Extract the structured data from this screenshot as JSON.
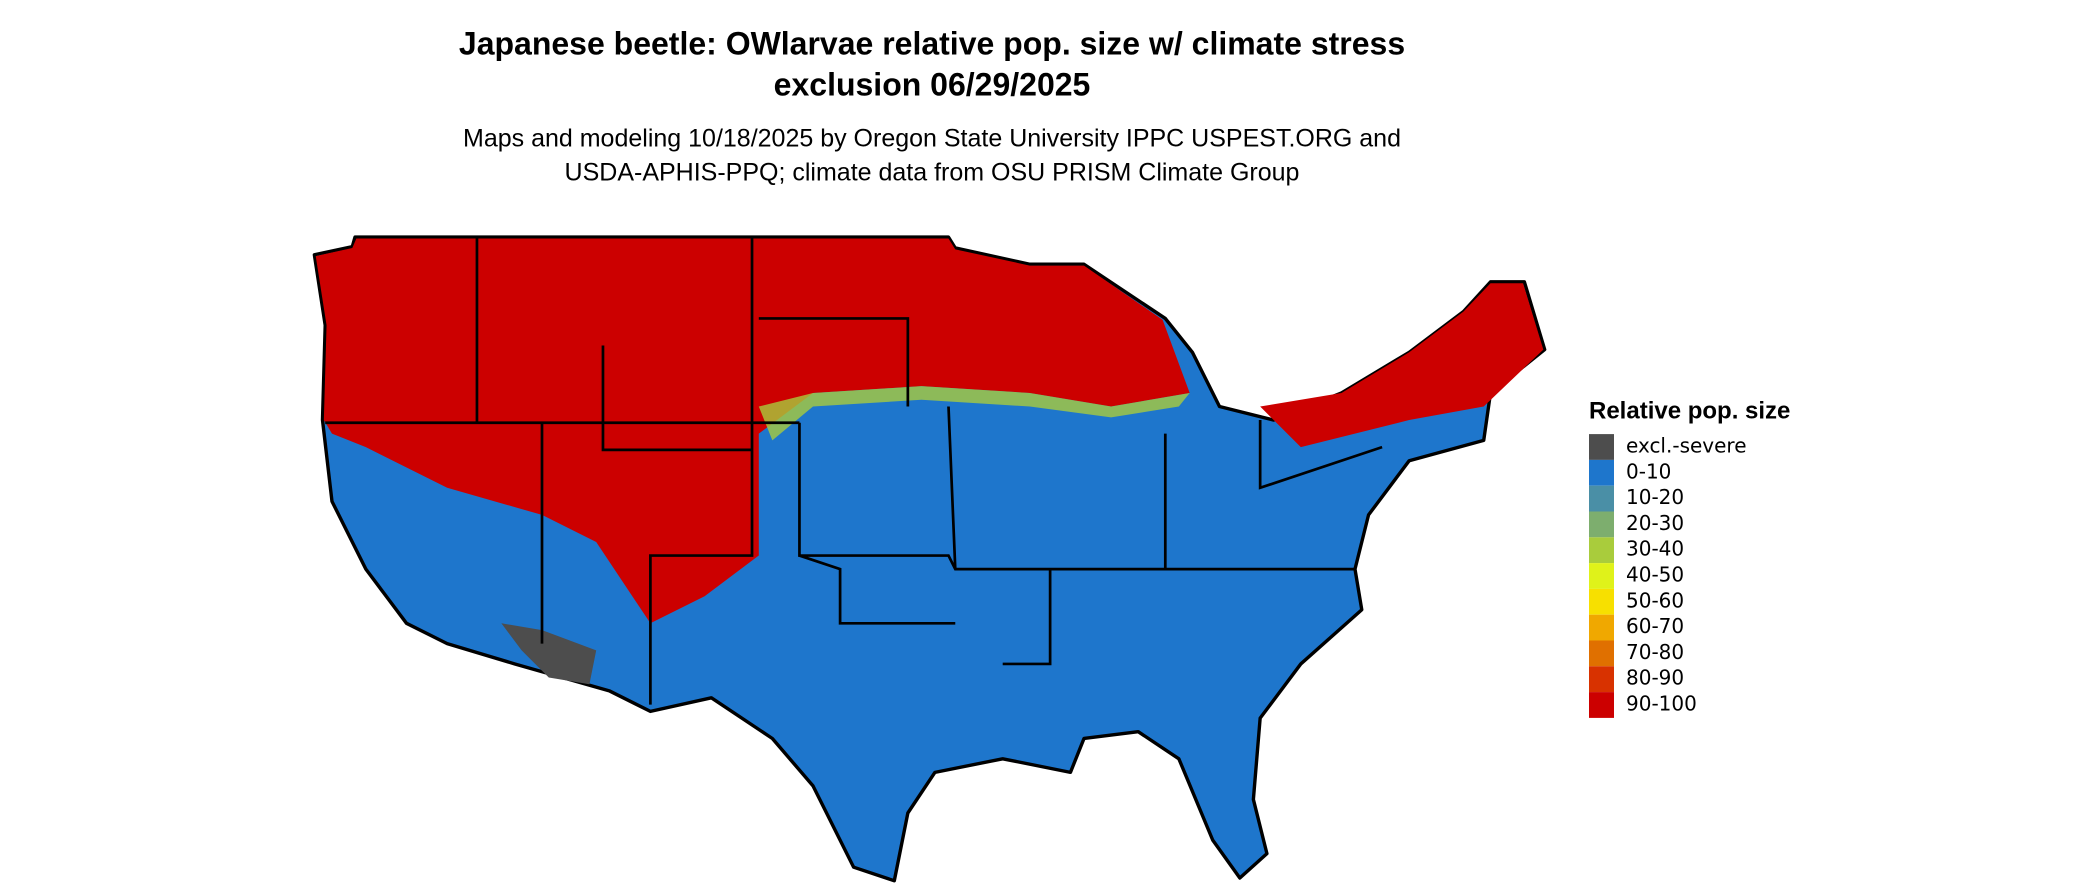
{
  "title_lines": [
    "Japanese beetle: OWlarvae relative pop. size w/ climate stress",
    "exclusion 06/29/2025"
  ],
  "subtitle_lines": [
    "Maps and modeling 10/18/2025 by Oregon State University IPPC USPEST.ORG and",
    "USDA-APHIS-PPQ; climate data from OSU PRISM Climate Group"
  ],
  "legend": {
    "title": "Relative pop. size",
    "items": [
      {
        "label": "excl.-severe",
        "color": "#4d4d4d"
      },
      {
        "label": "0-10",
        "color": "#1e76cc"
      },
      {
        "label": "10-20",
        "color": "#4a8fa6"
      },
      {
        "label": "20-30",
        "color": "#7dae6e"
      },
      {
        "label": "30-40",
        "color": "#a9cc3c"
      },
      {
        "label": "40-50",
        "color": "#dff21a"
      },
      {
        "label": "50-60",
        "color": "#f7e000"
      },
      {
        "label": "60-70",
        "color": "#f0a800"
      },
      {
        "label": "70-80",
        "color": "#e07000"
      },
      {
        "label": "80-90",
        "color": "#d83200"
      },
      {
        "label": "90-100",
        "color": "#cc0000"
      }
    ]
  }
}
